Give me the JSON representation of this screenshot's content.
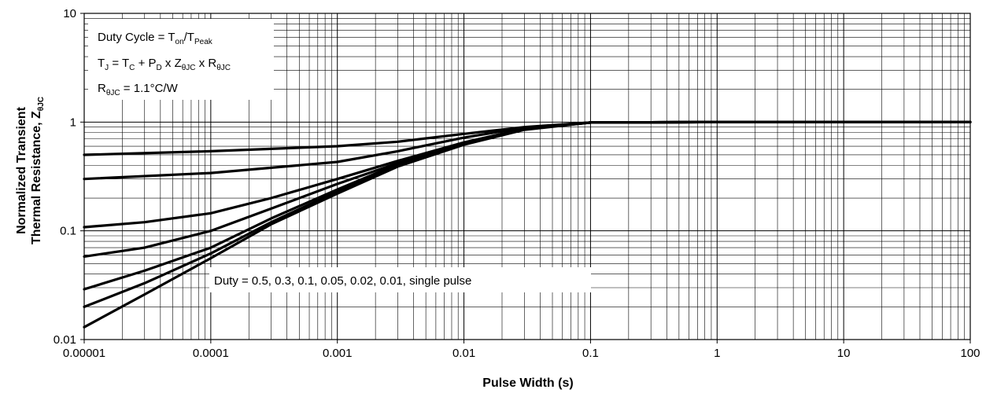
{
  "chart_data": {
    "type": "line",
    "x_scale": "log",
    "y_scale": "log",
    "xlabel": "Pulse Width (s)",
    "ylabel_line1": "Normalized Transient",
    "ylabel_line2": "Thermal Resistance, Z",
    "ylabel_sub": "θJC",
    "xlim": [
      1e-05,
      100
    ],
    "ylim": [
      0.01,
      10
    ],
    "grid": true,
    "x_ticks": [
      1e-05,
      0.0001,
      0.001,
      0.01,
      0.1,
      1,
      10,
      100
    ],
    "x_tick_labels": [
      "0.00001",
      "0.0001",
      "0.001",
      "0.01",
      "0.1",
      "1",
      "10",
      "100"
    ],
    "y_ticks": [
      0.01,
      0.1,
      1,
      10
    ],
    "y_tick_labels": [
      "0.01",
      "0.1",
      "1",
      "10"
    ],
    "info_box": {
      "line1": {
        "a": "Duty Cycle = T",
        "b": "on",
        "c": "/T",
        "d": "Peak"
      },
      "line2": {
        "a": "T",
        "b": "J",
        "c": " = T",
        "d": "C",
        "e": " + P",
        "f": "D",
        "g": " x Z",
        "h": "θJC",
        "i": " x R",
        "j": "θJC"
      },
      "line3": {
        "a": "R",
        "b": "θJC",
        "c": " = 1.1°C/W"
      }
    },
    "annotation": "Duty = 0.5, 0.3, 0.1, 0.05, 0.02, 0.01, single pulse",
    "series": [
      {
        "name": "0.5",
        "x": [
          1e-05,
          0.0001,
          0.001,
          0.003,
          0.01,
          0.03,
          0.1,
          1,
          10,
          100
        ],
        "y": [
          0.5,
          0.54,
          0.6,
          0.66,
          0.78,
          0.9,
          0.99,
          1,
          1,
          1
        ]
      },
      {
        "name": "0.3",
        "x": [
          1e-05,
          0.0001,
          0.001,
          0.003,
          0.01,
          0.03,
          0.1,
          1,
          10,
          100
        ],
        "y": [
          0.3,
          0.34,
          0.43,
          0.54,
          0.72,
          0.89,
          0.99,
          1,
          1,
          1
        ]
      },
      {
        "name": "0.1",
        "x": [
          1e-05,
          3e-05,
          0.0001,
          0.0003,
          0.001,
          0.003,
          0.01,
          0.03,
          0.1,
          1,
          10,
          100
        ],
        "y": [
          0.108,
          0.12,
          0.145,
          0.2,
          0.3,
          0.44,
          0.65,
          0.87,
          0.99,
          1,
          1,
          1
        ]
      },
      {
        "name": "0.05",
        "x": [
          1e-05,
          3e-05,
          0.0001,
          0.0003,
          0.001,
          0.003,
          0.01,
          0.03,
          0.1,
          1,
          10,
          100
        ],
        "y": [
          0.058,
          0.07,
          0.1,
          0.16,
          0.27,
          0.42,
          0.64,
          0.87,
          0.99,
          1,
          1,
          1
        ]
      },
      {
        "name": "0.02",
        "x": [
          1e-05,
          3e-05,
          0.0001,
          0.0003,
          0.001,
          0.003,
          0.01,
          0.03,
          0.1,
          1,
          10,
          100
        ],
        "y": [
          0.029,
          0.043,
          0.07,
          0.13,
          0.24,
          0.41,
          0.63,
          0.86,
          0.99,
          1,
          1,
          1
        ]
      },
      {
        "name": "0.01",
        "x": [
          1e-05,
          3e-05,
          0.0001,
          0.0003,
          0.001,
          0.003,
          0.01,
          0.03,
          0.1,
          1,
          10,
          100
        ],
        "y": [
          0.02,
          0.033,
          0.062,
          0.12,
          0.23,
          0.4,
          0.625,
          0.86,
          0.99,
          1,
          1,
          1
        ]
      },
      {
        "name": "single pulse",
        "x": [
          1e-05,
          3e-05,
          0.0001,
          0.0003,
          0.001,
          0.003,
          0.01,
          0.03,
          0.1,
          1,
          10,
          100
        ],
        "y": [
          0.013,
          0.026,
          0.056,
          0.115,
          0.22,
          0.39,
          0.62,
          0.85,
          0.99,
          1,
          1,
          1
        ]
      }
    ]
  }
}
